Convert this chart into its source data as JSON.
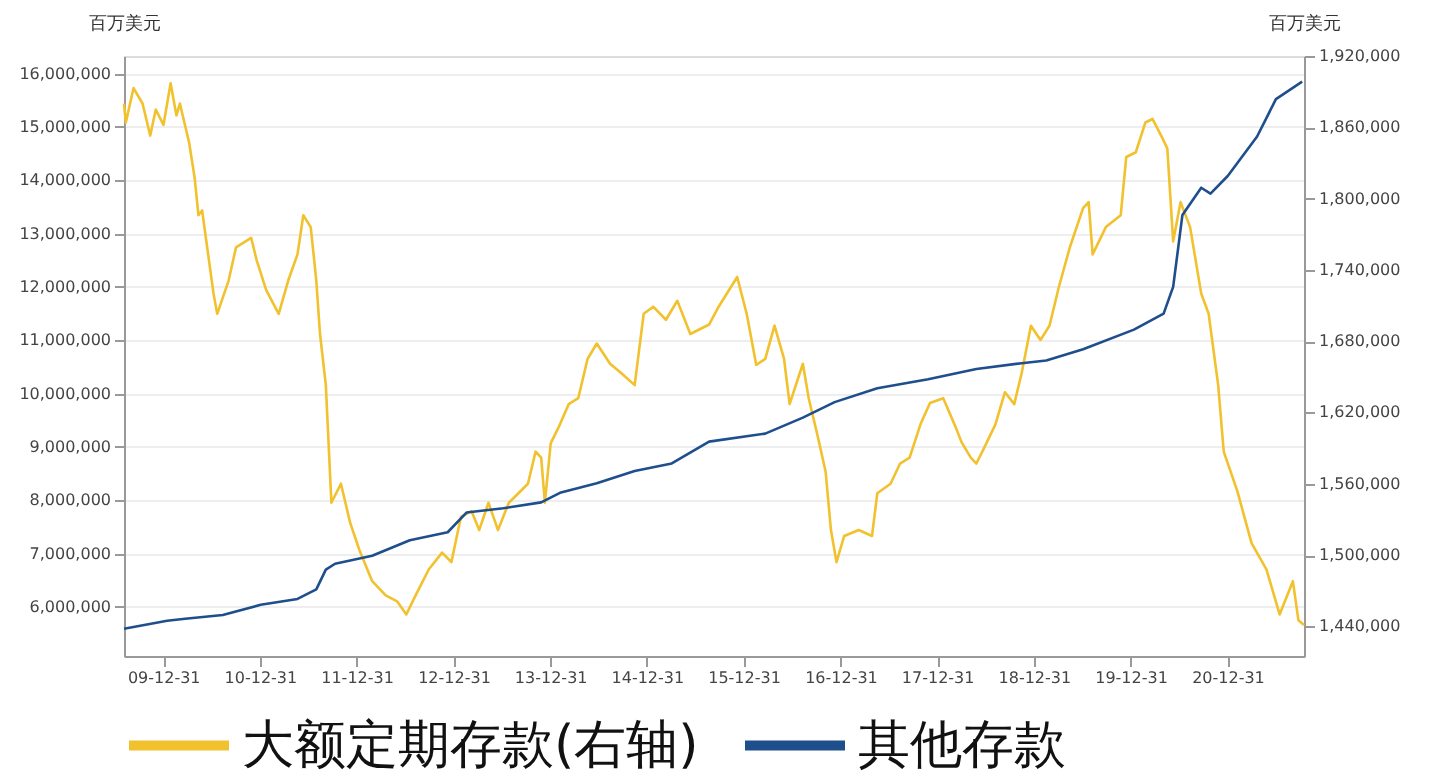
{
  "chart_data": {
    "type": "line",
    "ylabel": "百万美元",
    "y2label": "百万美元",
    "xlim": [
      "2009-08-05",
      "2021-10-16"
    ],
    "xticks": [
      {
        "value": "2009-12-31",
        "label": "09-12-31"
      },
      {
        "value": "2010-12-31",
        "label": "10-12-31"
      },
      {
        "value": "2011-12-31",
        "label": "11-12-31"
      },
      {
        "value": "2012-12-31",
        "label": "12-12-31"
      },
      {
        "value": "2013-12-31",
        "label": "13-12-31"
      },
      {
        "value": "2014-12-31",
        "label": "14-12-31"
      },
      {
        "value": "2015-12-31",
        "label": "15-12-31"
      },
      {
        "value": "2016-12-31",
        "label": "16-12-31"
      },
      {
        "value": "2017-12-31",
        "label": "17-12-31"
      },
      {
        "value": "2018-12-31",
        "label": "18-12-31"
      },
      {
        "value": "2019-12-31",
        "label": "19-12-31"
      },
      {
        "value": "2020-12-31",
        "label": "20-12-31"
      }
    ],
    "ylim": [
      5080000,
      16330000
    ],
    "yticks": [
      {
        "value": 6000000,
        "label": "6,000,000"
      },
      {
        "value": 7000000,
        "label": "7,000,000"
      },
      {
        "value": 8000000,
        "label": "8,000,000"
      },
      {
        "value": 9000000,
        "label": "9,000,000"
      },
      {
        "value": 10000000,
        "label": "10,000,000"
      },
      {
        "value": 11000000,
        "label": "11,000,000"
      },
      {
        "value": 12000000,
        "label": "12,000,000"
      },
      {
        "value": 13000000,
        "label": "13,000,000"
      },
      {
        "value": 14000000,
        "label": "14,000,000"
      },
      {
        "value": 15000000,
        "label": "15,000,000"
      },
      {
        "value": 16000000,
        "label": "16,000,000"
      }
    ],
    "y2lim": [
      1415000,
      1920000
    ],
    "y2ticks": [
      {
        "value": 1440000,
        "label": "1,440,000"
      },
      {
        "value": 1500000,
        "label": "1,500,000"
      },
      {
        "value": 1560000,
        "label": "1,560,000"
      },
      {
        "value": 1620000,
        "label": "1,620,000"
      },
      {
        "value": 1680000,
        "label": "1,680,000"
      },
      {
        "value": 1740000,
        "label": "1,740,000"
      },
      {
        "value": 1800000,
        "label": "1,800,000"
      },
      {
        "value": 1860000,
        "label": "1,860,000"
      },
      {
        "value": 1920000,
        "label": "1,920,000"
      }
    ],
    "grid": "y",
    "legend": "bottom",
    "marker": "none",
    "line_style": "solid",
    "series": [
      {
        "name": "大额定期存款(右轴)",
        "color": "#f2c12e",
        "axis": "y2",
        "x": [
          "2009-08-05",
          "2009-08-12",
          "2009-09-10",
          "2009-10-14",
          "2009-11-12",
          "2009-12-03",
          "2010-01-01",
          "2010-01-28",
          "2010-02-19",
          "2010-03-04",
          "2010-04-08",
          "2010-04-29",
          "2010-05-13",
          "2010-05-27",
          "2010-07-09",
          "2010-07-23",
          "2010-09-04",
          "2010-10-02",
          "2010-11-28",
          "2010-12-19",
          "2011-01-24",
          "2011-03-12",
          "2011-04-17",
          "2011-05-22",
          "2011-06-13",
          "2011-07-11",
          "2011-08-01",
          "2011-08-15",
          "2011-09-06",
          "2011-09-20",
          "2011-09-27",
          "2011-11-02",
          "2011-12-07",
          "2012-01-11",
          "2012-02-28",
          "2012-04-19",
          "2012-06-01",
          "2012-07-06",
          "2012-08-10",
          "2012-09-29",
          "2012-11-18",
          "2012-12-23",
          "2013-01-28",
          "2013-03-09",
          "2013-04-07",
          "2013-05-12",
          "2013-06-17",
          "2013-07-28",
          "2013-10-08",
          "2013-11-06",
          "2013-11-27",
          "2013-12-11",
          "2014-01-02",
          "2014-02-06",
          "2014-03-11",
          "2014-04-16",
          "2014-05-21",
          "2014-06-25",
          "2014-08-14",
          "2014-09-26",
          "2014-11-15",
          "2014-12-19",
          "2015-01-24",
          "2015-03-13",
          "2015-04-25",
          "2015-06-13",
          "2015-08-23",
          "2015-09-28",
          "2015-12-07",
          "2016-01-12",
          "2016-02-17",
          "2016-03-22",
          "2016-04-26",
          "2016-06-01",
          "2016-06-22",
          "2016-08-11",
          "2016-09-02",
          "2016-10-07",
          "2016-11-05",
          "2016-11-25",
          "2016-12-16",
          "2017-01-14",
          "2017-03-10",
          "2017-04-29",
          "2017-05-19",
          "2017-07-08",
          "2017-08-13",
          "2017-09-18",
          "2017-10-29",
          "2017-12-04",
          "2018-01-23",
          "2018-03-12",
          "2018-04-02",
          "2018-05-07",
          "2018-05-28",
          "2018-06-26",
          "2018-08-08",
          "2018-09-13",
          "2018-10-18",
          "2018-11-15",
          "2018-12-20",
          "2019-01-25",
          "2019-02-28",
          "2019-04-05",
          "2019-05-16",
          "2019-07-05",
          "2019-07-26",
          "2019-08-10",
          "2019-09-29",
          "2019-11-24",
          "2019-12-15",
          "2020-01-20",
          "2020-02-25",
          "2020-03-23",
          "2020-04-27",
          "2020-05-18",
          "2020-06-09",
          "2020-07-07",
          "2020-08-12",
          "2020-09-23",
          "2020-10-21",
          "2020-11-26",
          "2020-12-17",
          "2021-02-06",
          "2021-04-01",
          "2021-05-27",
          "2021-07-16",
          "2021-09-04",
          "2021-09-25",
          "2021-10-16"
        ],
        "values": [
          1880000,
          1864000,
          1893000,
          1880000,
          1853000,
          1875000,
          1862000,
          1897000,
          1870000,
          1880000,
          1847000,
          1817000,
          1786000,
          1790000,
          1720000,
          1703000,
          1731000,
          1759000,
          1767000,
          1748000,
          1723000,
          1703000,
          1731000,
          1753000,
          1786000,
          1776000,
          1731000,
          1686000,
          1643000,
          1577000,
          1544000,
          1560000,
          1527000,
          1504000,
          1478000,
          1466000,
          1461000,
          1450000,
          1466000,
          1488000,
          1502000,
          1494000,
          1532000,
          1537000,
          1521000,
          1544000,
          1521000,
          1544000,
          1560000,
          1587000,
          1582000,
          1544000,
          1594000,
          1610000,
          1627000,
          1632000,
          1665000,
          1678000,
          1661000,
          1653000,
          1643000,
          1703000,
          1709000,
          1698000,
          1714000,
          1686000,
          1694000,
          1709000,
          1734000,
          1703000,
          1660000,
          1665000,
          1693000,
          1665000,
          1627000,
          1661000,
          1632000,
          1599000,
          1570000,
          1521000,
          1494000,
          1516000,
          1521000,
          1516000,
          1552000,
          1560000,
          1577000,
          1582000,
          1610000,
          1628000,
          1632000,
          1607000,
          1595000,
          1582000,
          1577000,
          1590000,
          1610000,
          1637000,
          1627000,
          1653000,
          1693000,
          1681000,
          1693000,
          1726000,
          1759000,
          1792000,
          1797000,
          1753000,
          1776000,
          1786000,
          1835000,
          1839000,
          1864000,
          1867000,
          1852000,
          1842000,
          1764000,
          1797000,
          1776000,
          1720000,
          1703000,
          1643000,
          1587000,
          1554000,
          1510000,
          1488000,
          1450000,
          1478000,
          1445000,
          1441000
        ]
      },
      {
        "name": "其他存款",
        "color": "#1f4e8c",
        "x": [
          "2009-08-05",
          "2010-01-15",
          "2010-03-24",
          "2010-08-13",
          "2011-01-03",
          "2011-05-22",
          "2011-08-01",
          "2011-09-06",
          "2011-10-11",
          "2012-02-28",
          "2012-07-19",
          "2012-12-09",
          "2013-02-18",
          "2013-07-07",
          "2013-11-27",
          "2014-02-06",
          "2014-06-25",
          "2014-11-15",
          "2015-04-04",
          "2015-08-23",
          "2016-03-22",
          "2016-08-11",
          "2016-12-09",
          "2017-05-19",
          "2017-11-27",
          "2018-05-28",
          "2018-11-15",
          "2019-02-16",
          "2019-07-05",
          "2020-01-13",
          "2020-05-04",
          "2020-06-09",
          "2020-07-14",
          "2020-09-23",
          "2020-10-28",
          "2021-01-01",
          "2021-04-22",
          "2021-07-02",
          "2021-10-09"
        ],
        "values": [
          5590000,
          5740000,
          5780000,
          5850000,
          6040000,
          6150000,
          6330000,
          6700000,
          6810000,
          6960000,
          7250000,
          7400000,
          7770000,
          7850000,
          7960000,
          8140000,
          8320000,
          8550000,
          8690000,
          9100000,
          9250000,
          9550000,
          9840000,
          10100000,
          10270000,
          10460000,
          10570000,
          10620000,
          10830000,
          11200000,
          11500000,
          12000000,
          13350000,
          13860000,
          13750000,
          14080000,
          14820000,
          15520000,
          15850000
        ]
      }
    ]
  }
}
